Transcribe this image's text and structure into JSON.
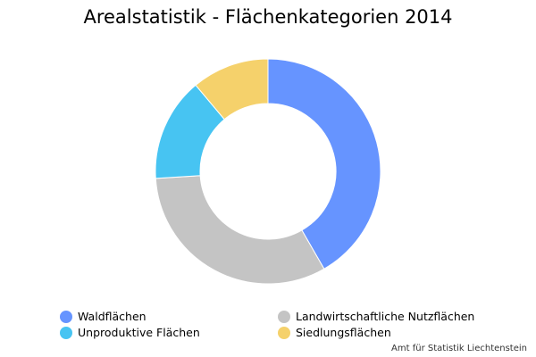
{
  "chart_data": {
    "type": "pie",
    "title": "Arealstatistik - Flächenkategorien 2014",
    "donut": true,
    "categories": [
      "Waldflächen",
      "Landwirtschaftliche Nutzflächen",
      "Unproduktive Flächen",
      "Siedlungsflächen"
    ],
    "values": [
      41.7,
      32.3,
      14.9,
      11.1
    ],
    "colors": [
      "#6694ff",
      "#c4c4c4",
      "#47c4f2",
      "#f5d16b"
    ],
    "legend_position": "bottom",
    "credit": "Amt für Statistik Liechtenstein"
  }
}
